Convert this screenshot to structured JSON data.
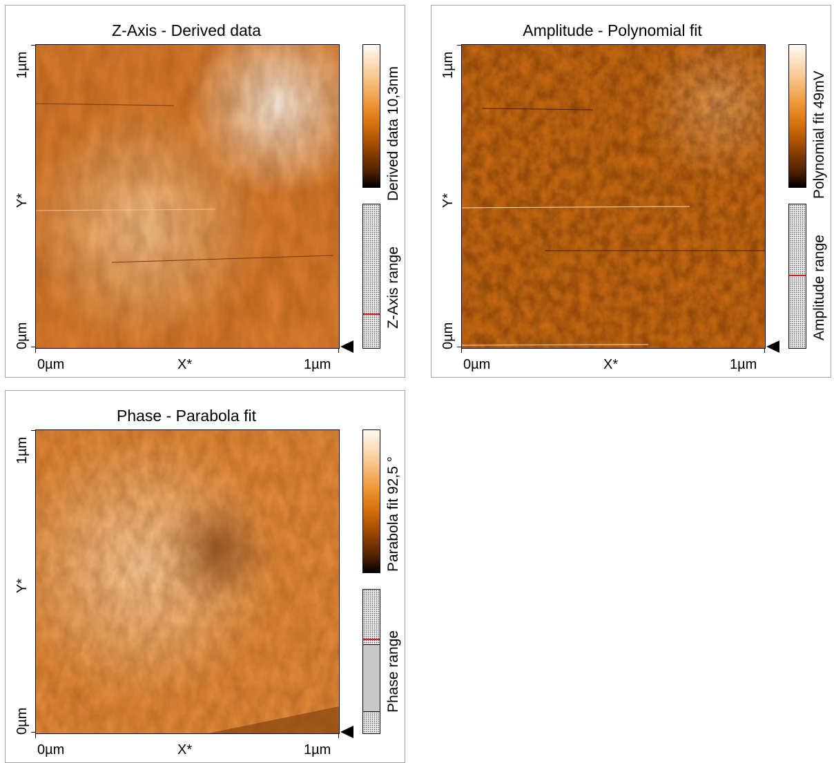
{
  "panels": [
    {
      "id": "z",
      "title": "Z-Axis - Derived data",
      "y_axis": {
        "top": "1µm",
        "mid": "Y*",
        "bottom": "0µm"
      },
      "x_axis": {
        "left": "0µm",
        "mid": "X*",
        "right": "1µm"
      },
      "colorbar_label": "Derived data 10,3nm",
      "range_label": "Z-Axis range",
      "range_selection": {
        "start_fraction": null,
        "end_fraction": null,
        "marker_fraction": 0.24
      }
    },
    {
      "id": "amp",
      "title": "Amplitude - Polynomial fit",
      "y_axis": {
        "top": "1µm",
        "mid": "Y*",
        "bottom": "0µm"
      },
      "x_axis": {
        "left": "0µm",
        "mid": "X*",
        "right": "1µm"
      },
      "colorbar_label": "Polynomial fit 49mV",
      "range_label": "Amplitude range",
      "range_selection": {
        "start_fraction": null,
        "end_fraction": null,
        "marker_fraction": 0.51
      }
    },
    {
      "id": "phase",
      "title": "Phase - Parabola fit",
      "y_axis": {
        "top": "1µm",
        "mid": "Y*",
        "bottom": "0µm"
      },
      "x_axis": {
        "left": "0µm",
        "mid": "X*",
        "right": "1µm"
      },
      "colorbar_label": "Parabola fit 92,5 °",
      "range_label": "Phase range",
      "range_selection": {
        "start_fraction": 0.38,
        "end_fraction": 0.85,
        "marker_fraction": 0.66
      }
    }
  ],
  "colors": {
    "map_dark": "#5a2600",
    "map_mid": "#d9751a",
    "map_light": "#ffe9cc",
    "range_marker": "#d32020"
  }
}
